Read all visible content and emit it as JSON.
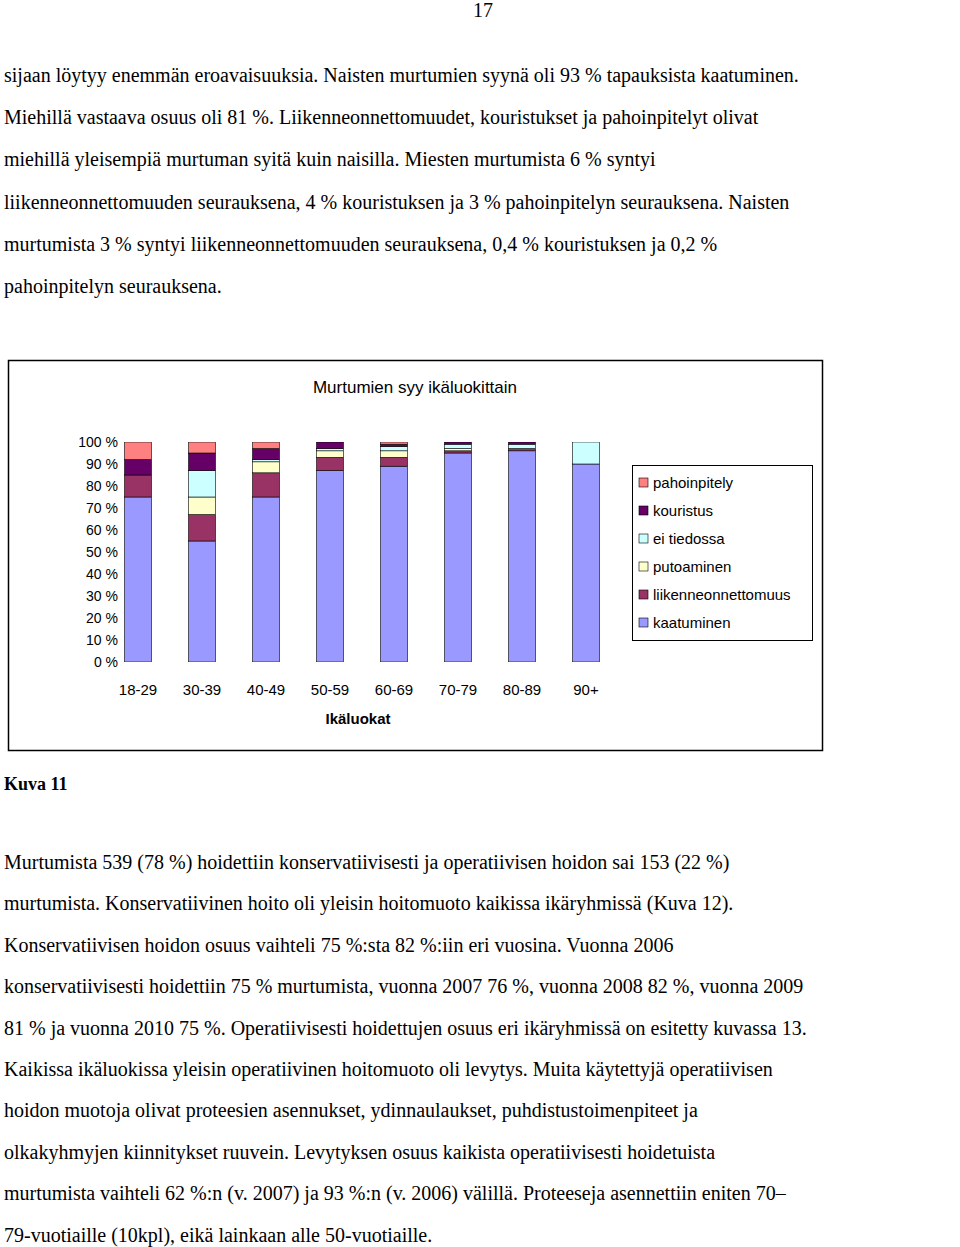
{
  "page_number": "17",
  "text_before": [
    "sijaan löytyy enemmän eroavaisuuksia. Naisten murtumien syynä oli 93 % tapauksista kaatuminen.",
    "Miehillä vastaava osuus oli 81 %. Liikenneonnettomuudet, kouristukset ja pahoinpitelyt olivat",
    "miehillä yleisempiä murtuman syitä kuin naisilla. Miesten murtumista 6 % syntyi",
    "liikenneonnettomuuden seurauksena, 4 % kouristuksen ja 3 % pahoinpitelyn seurauksena. Naisten",
    "murtumista 3 % syntyi liikenneonnettomuuden seurauksena, 0,4 % kouristuksen ja 0,2 %",
    "pahoinpitelyn seurauksena."
  ],
  "chart_data": {
    "type": "bar",
    "stacked": true,
    "title": "Murtumien syy ikäluokittain",
    "x_label": "Ikäluokat",
    "categories": [
      "18-29",
      "30-39",
      "40-49",
      "50-59",
      "60-69",
      "70-79",
      "80-89",
      "90+"
    ],
    "series": [
      {
        "name": "kaatuminen",
        "color": "#9999ff",
        "values": [
          75,
          55,
          75,
          87,
          89,
          95,
          96,
          90
        ]
      },
      {
        "name": "liikenneonnettomuus",
        "color": "#993366",
        "values": [
          10,
          12,
          11,
          6,
          4,
          1,
          1,
          0
        ]
      },
      {
        "name": "putoaminen",
        "color": "#ffffcc",
        "values": [
          0,
          8,
          5,
          3,
          3,
          1,
          0,
          0
        ]
      },
      {
        "name": "ei tiedossa",
        "color": "#ccffff",
        "values": [
          0,
          12,
          1,
          1,
          2,
          2,
          2,
          10
        ]
      },
      {
        "name": "kouristus",
        "color": "#660066",
        "values": [
          7,
          8,
          5,
          3,
          1,
          1,
          1,
          0
        ]
      },
      {
        "name": "pahoinpitely",
        "color": "#ff8080",
        "values": [
          8,
          5,
          3,
          0,
          1,
          0,
          0,
          0
        ]
      }
    ],
    "ylim": [
      0,
      100
    ],
    "yticks": [
      {
        "value": 0,
        "label": "0 %"
      },
      {
        "value": 10,
        "label": "10 %"
      },
      {
        "value": 20,
        "label": "20 %"
      },
      {
        "value": 30,
        "label": "30 %"
      },
      {
        "value": 40,
        "label": "40 %"
      },
      {
        "value": 50,
        "label": "50 %"
      },
      {
        "value": 60,
        "label": "60 %"
      },
      {
        "value": 70,
        "label": "70 %"
      },
      {
        "value": 80,
        "label": "80 %"
      },
      {
        "value": 90,
        "label": "90 %"
      },
      {
        "value": 100,
        "label": "100 %"
      }
    ],
    "grid": false,
    "legend": "right"
  },
  "caption": "Kuva 11",
  "text_after": [
    "Murtumista 539 (78 %) hoidettiin konservatiivisesti ja operatiivisen hoidon sai 153 (22 %)",
    "murtumista. Konservatiivinen hoito oli yleisin hoitomuoto kaikissa ikäryhmissä (Kuva 12).",
    "Konservatiivisen hoidon osuus vaihteli 75 %:sta 82 %:iin eri vuosina. Vuonna 2006",
    "konservatiivisesti hoidettiin 75 % murtumista, vuonna 2007 76 %, vuonna 2008 82 %, vuonna 2009",
    "81 % ja vuonna 2010 75 %. Operatiivisesti hoidettujen osuus eri ikäryhmissä on esitetty kuvassa 13.",
    "Kaikissa ikäluokissa yleisin operatiivinen hoitomuoto oli levytys. Muita käytettyjä operatiivisen",
    "hoidon muotoja olivat proteesien asennukset, ydinnaulaukset, puhdistustoimenpiteet ja",
    "olkakyhmyjen kiinnitykset ruuvein. Levytyksen osuus kaikista operatiivisesti hoidetuista",
    "murtumista vaihteli 62 %:n (v. 2007) ja 93 %:n (v. 2006) välillä. Proteeseja asennettiin eniten 70–",
    "79-vuotiaille (10kpl), eikä lainkaan alle 50-vuotiaille."
  ]
}
